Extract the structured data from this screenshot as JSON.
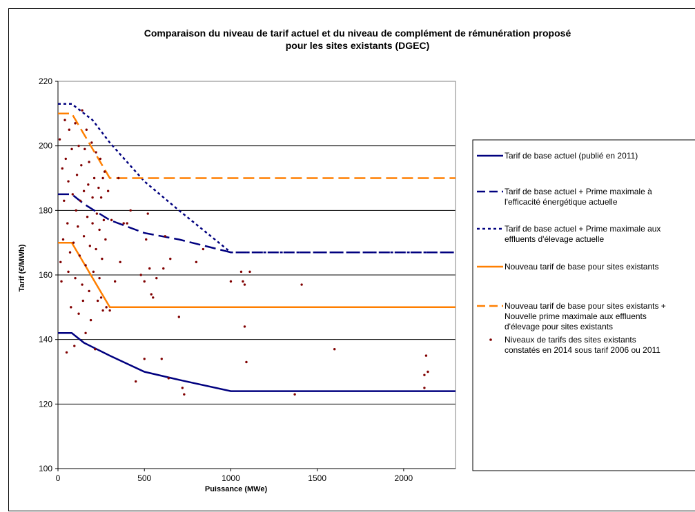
{
  "chart_data": {
    "type": "line",
    "title_lines": [
      "Comparaison du niveau de tarif actuel et du niveau de complément de rémunération proposé",
      "pour les sites existants (DGEC)"
    ],
    "xlabel": "Puissance (MWe)",
    "ylabel": "Tarif (€/MWh)",
    "xlim": [
      0,
      2300
    ],
    "ylim": [
      100,
      220
    ],
    "xticks": [
      0,
      500,
      1000,
      1500,
      2000
    ],
    "yticks": [
      100,
      120,
      140,
      160,
      180,
      200,
      220
    ],
    "grid": "horizontal",
    "legend_position": "right",
    "series": [
      {
        "name": "Tarif de base actuel (publié en 2011)",
        "label_lines": [
          "Tarif de base actuel (publié en 2011)"
        ],
        "color": "#00007F",
        "style": "solid",
        "points": [
          [
            0,
            142
          ],
          [
            80,
            142
          ],
          [
            150,
            139
          ],
          [
            300,
            135
          ],
          [
            500,
            130
          ],
          [
            700,
            127.5
          ],
          [
            1000,
            124
          ],
          [
            2300,
            124
          ]
        ]
      },
      {
        "name": "Tarif de base actuel + Prime maximale à l'efficacité énergétique actuelle",
        "label_lines": [
          "Tarif de base actuel + Prime maximale à",
          "l'efficacité énergétique actuelle"
        ],
        "color": "#00007F",
        "style": "longdash",
        "points": [
          [
            0,
            185
          ],
          [
            80,
            185
          ],
          [
            150,
            182
          ],
          [
            300,
            177
          ],
          [
            500,
            173
          ],
          [
            700,
            171
          ],
          [
            1000,
            167
          ],
          [
            2300,
            167
          ]
        ]
      },
      {
        "name": "Tarif de base actuel + Prime maximale aux effluents d'élevage actuelle",
        "label_lines": [
          "Tarif de base actuel + Prime maximale aux",
          "effluents d'élevage actuelle"
        ],
        "color": "#00007F",
        "style": "dotted",
        "points": [
          [
            0,
            213
          ],
          [
            80,
            213
          ],
          [
            200,
            208
          ],
          [
            300,
            201
          ],
          [
            500,
            189
          ],
          [
            700,
            180
          ],
          [
            1000,
            167
          ],
          [
            2300,
            167
          ]
        ]
      },
      {
        "name": "Nouveau tarif de base pour sites existants",
        "label_lines": [
          "Nouveau tarif de base pour sites existants"
        ],
        "color": "#FF7F00",
        "style": "solid",
        "points": [
          [
            0,
            170
          ],
          [
            80,
            170
          ],
          [
            300,
            150
          ],
          [
            2300,
            150
          ]
        ]
      },
      {
        "name": "Nouveau tarif de base pour sites existants + Nouvelle prime maximale aux effluents d'élevage pour sites existants",
        "label_lines": [
          "Nouveau tarif de base pour sites existants +",
          "Nouvelle prime maximale aux effluents",
          "d'élevage pour sites existants"
        ],
        "color": "#FF7F00",
        "style": "longdash",
        "points": [
          [
            0,
            210
          ],
          [
            80,
            210
          ],
          [
            300,
            190
          ],
          [
            2300,
            190
          ]
        ]
      },
      {
        "name": "Niveaux de tarifs des sites existants constatés en 2014 sous tarif 2006 ou 2011",
        "label_lines": [
          "Niveaux de tarifs des sites existants",
          "constatés en 2014 sous tarif 2006 ou 2011"
        ],
        "color": "#800000",
        "style": "markers",
        "points": [
          [
            10,
            202
          ],
          [
            15,
            164
          ],
          [
            20,
            158
          ],
          [
            25,
            193
          ],
          [
            30,
            171
          ],
          [
            35,
            183
          ],
          [
            40,
            208
          ],
          [
            45,
            196
          ],
          [
            50,
            136
          ],
          [
            55,
            176
          ],
          [
            60,
            189
          ],
          [
            60,
            161
          ],
          [
            65,
            205
          ],
          [
            70,
            167
          ],
          [
            75,
            150
          ],
          [
            80,
            199
          ],
          [
            85,
            185
          ],
          [
            90,
            170
          ],
          [
            95,
            138
          ],
          [
            100,
            207
          ],
          [
            100,
            159
          ],
          [
            105,
            180
          ],
          [
            110,
            191
          ],
          [
            115,
            175
          ],
          [
            120,
            200
          ],
          [
            120,
            148
          ],
          [
            125,
            166
          ],
          [
            130,
            183
          ],
          [
            135,
            194
          ],
          [
            140,
            157
          ],
          [
            140,
            211
          ],
          [
            145,
            152
          ],
          [
            150,
            172
          ],
          [
            150,
            186
          ],
          [
            155,
            199
          ],
          [
            160,
            142
          ],
          [
            160,
            163
          ],
          [
            165,
            205
          ],
          [
            170,
            178
          ],
          [
            175,
            188
          ],
          [
            180,
            195
          ],
          [
            180,
            155
          ],
          [
            185,
            169
          ],
          [
            190,
            146
          ],
          [
            195,
            201
          ],
          [
            200,
            176
          ],
          [
            200,
            184
          ],
          [
            205,
            161
          ],
          [
            210,
            190
          ],
          [
            215,
            137
          ],
          [
            220,
            198
          ],
          [
            220,
            168
          ],
          [
            225,
            179
          ],
          [
            230,
            152
          ],
          [
            235,
            187
          ],
          [
            240,
            159
          ],
          [
            240,
            174
          ],
          [
            245,
            196
          ],
          [
            250,
            153
          ],
          [
            250,
            184
          ],
          [
            255,
            165
          ],
          [
            260,
            190
          ],
          [
            260,
            149
          ],
          [
            265,
            177
          ],
          [
            270,
            192
          ],
          [
            275,
            171
          ],
          [
            280,
            150
          ],
          [
            290,
            186
          ],
          [
            300,
            149
          ],
          [
            310,
            177
          ],
          [
            330,
            158
          ],
          [
            350,
            190
          ],
          [
            360,
            164
          ],
          [
            380,
            176
          ],
          [
            400,
            176
          ],
          [
            420,
            180
          ],
          [
            450,
            127
          ],
          [
            480,
            160
          ],
          [
            500,
            158
          ],
          [
            500,
            134
          ],
          [
            510,
            171
          ],
          [
            520,
            179
          ],
          [
            530,
            162
          ],
          [
            540,
            154
          ],
          [
            550,
            153
          ],
          [
            570,
            159
          ],
          [
            600,
            134
          ],
          [
            610,
            162
          ],
          [
            620,
            172
          ],
          [
            640,
            128
          ],
          [
            650,
            165
          ],
          [
            700,
            147
          ],
          [
            720,
            125
          ],
          [
            730,
            123
          ],
          [
            800,
            164
          ],
          [
            840,
            168
          ],
          [
            1000,
            158
          ],
          [
            1060,
            161
          ],
          [
            1070,
            158
          ],
          [
            1080,
            157
          ],
          [
            1080,
            144
          ],
          [
            1090,
            133
          ],
          [
            1110,
            161
          ],
          [
            1410,
            157
          ],
          [
            1600,
            137
          ],
          [
            1370,
            123
          ],
          [
            2120,
            125
          ],
          [
            2120,
            129
          ],
          [
            2130,
            135
          ],
          [
            2140,
            130
          ]
        ]
      }
    ]
  }
}
